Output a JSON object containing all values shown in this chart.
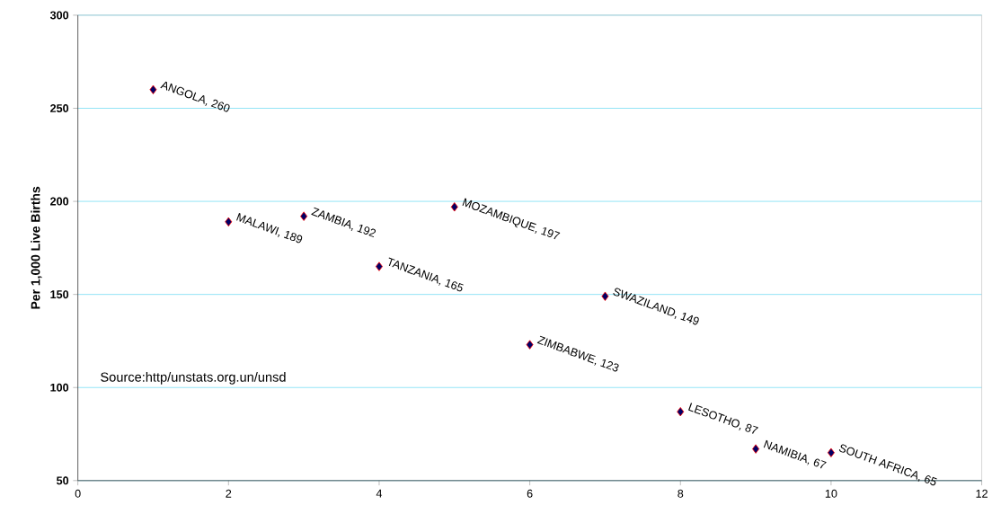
{
  "chart_data": {
    "type": "scatter",
    "ylabel": "Per 1,000 Live Births",
    "x": [
      1,
      2,
      3,
      4,
      5,
      6,
      7,
      8,
      9,
      10
    ],
    "values": [
      260,
      189,
      192,
      165,
      197,
      123,
      149,
      87,
      67,
      65
    ],
    "value_labels": [
      "ANGOLA, 260",
      "MALAWI, 189",
      "ZAMBIA, 192",
      "TANZANIA, 165",
      "MOZAMBIQUE, 197",
      "ZIMBABWE, 123",
      "SWAZILAND, 149",
      "LESOTHO, 87",
      "NAMIBIA, 67",
      "SOUTH AFRICA, 65"
    ],
    "color": "#000066",
    "marker": "diamond",
    "xlim": [
      0,
      12
    ],
    "xticks": [
      0,
      2,
      4,
      6,
      8,
      10,
      12
    ],
    "ylim": [
      50,
      300
    ],
    "yticks": [
      50,
      100,
      150,
      200,
      250,
      300
    ],
    "grid": "y",
    "annotations": [
      "Source:http/unstats.org.un/unsd"
    ]
  }
}
